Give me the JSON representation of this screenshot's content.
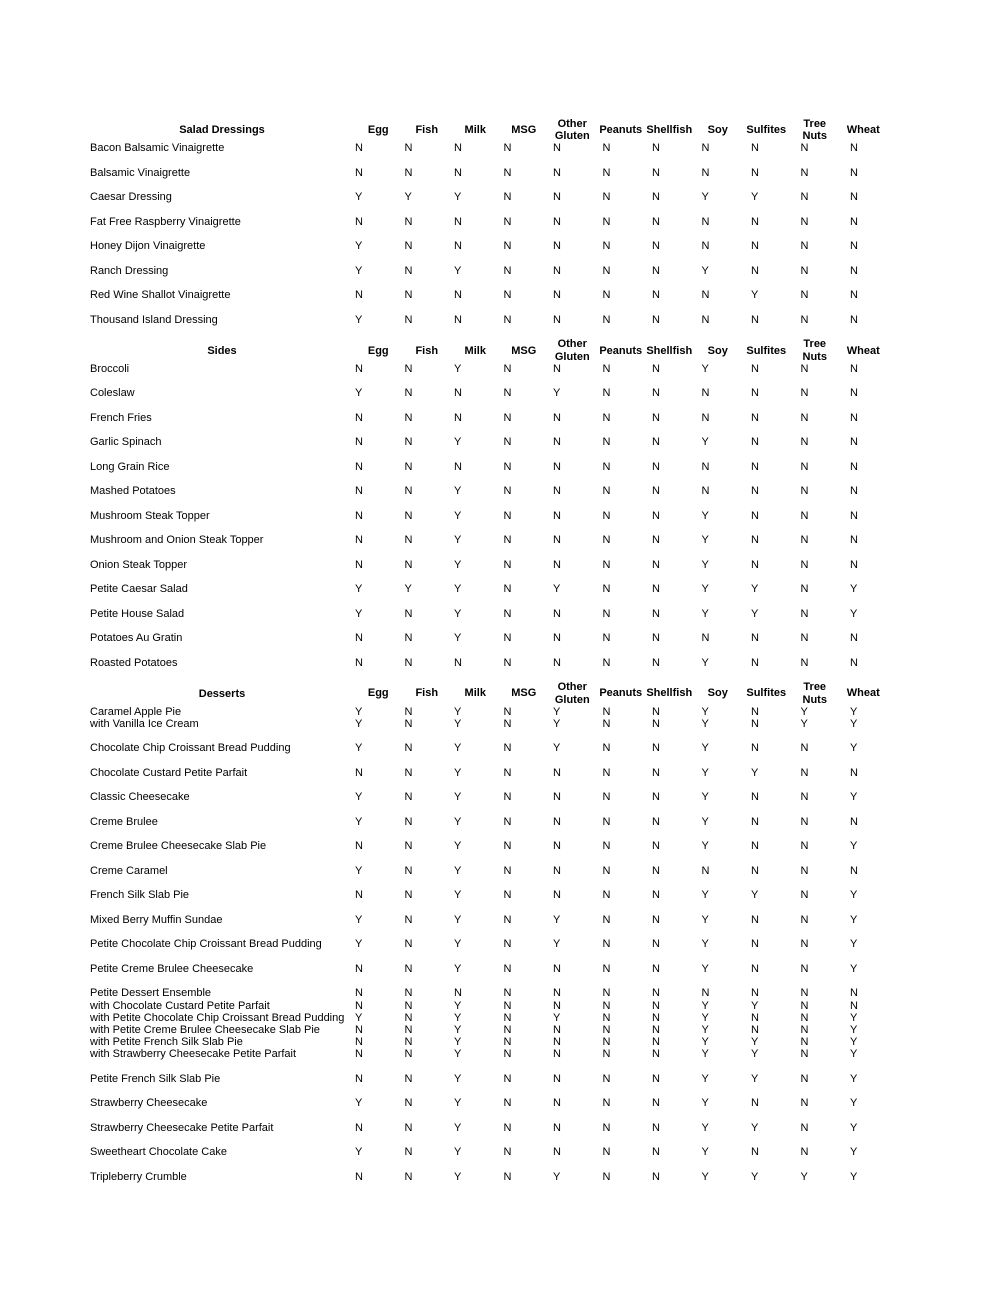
{
  "columns": [
    "Egg",
    "Fish",
    "Milk",
    "MSG",
    "Other\nGluten",
    "Peanuts",
    "Shellfish",
    "Soy",
    "Sulfites",
    "Tree Nuts",
    "Wheat"
  ],
  "sections": [
    {
      "title": "Salad Dressings",
      "groups": [
        {
          "lines": [
            {
              "label": "Bacon Balsamic Vinaigrette",
              "values": [
                "N",
                "N",
                "N",
                "N",
                "N",
                "N",
                "N",
                "N",
                "N",
                "N",
                "N"
              ]
            }
          ]
        },
        {
          "lines": [
            {
              "label": "Balsamic Vinaigrette",
              "values": [
                "N",
                "N",
                "N",
                "N",
                "N",
                "N",
                "N",
                "N",
                "N",
                "N",
                "N"
              ]
            }
          ]
        },
        {
          "lines": [
            {
              "label": "Caesar Dressing",
              "values": [
                "Y",
                "Y",
                "Y",
                "N",
                "N",
                "N",
                "N",
                "Y",
                "Y",
                "N",
                "N"
              ]
            }
          ]
        },
        {
          "lines": [
            {
              "label": "Fat Free Raspberry Vinaigrette",
              "values": [
                "N",
                "N",
                "N",
                "N",
                "N",
                "N",
                "N",
                "N",
                "N",
                "N",
                "N"
              ]
            }
          ]
        },
        {
          "lines": [
            {
              "label": "Honey Dijon Vinaigrette",
              "values": [
                "Y",
                "N",
                "N",
                "N",
                "N",
                "N",
                "N",
                "N",
                "N",
                "N",
                "N"
              ]
            }
          ]
        },
        {
          "lines": [
            {
              "label": "Ranch Dressing",
              "values": [
                "Y",
                "N",
                "Y",
                "N",
                "N",
                "N",
                "N",
                "Y",
                "N",
                "N",
                "N"
              ]
            }
          ]
        },
        {
          "lines": [
            {
              "label": "Red Wine Shallot Vinaigrette",
              "values": [
                "N",
                "N",
                "N",
                "N",
                "N",
                "N",
                "N",
                "N",
                "Y",
                "N",
                "N"
              ]
            }
          ]
        },
        {
          "lines": [
            {
              "label": "Thousand Island Dressing",
              "values": [
                "Y",
                "N",
                "N",
                "N",
                "N",
                "N",
                "N",
                "N",
                "N",
                "N",
                "N"
              ]
            }
          ]
        }
      ]
    },
    {
      "title": "Sides",
      "groups": [
        {
          "lines": [
            {
              "label": "Broccoli",
              "values": [
                "N",
                "N",
                "Y",
                "N",
                "N",
                "N",
                "N",
                "Y",
                "N",
                "N",
                "N"
              ]
            }
          ]
        },
        {
          "lines": [
            {
              "label": "Coleslaw",
              "values": [
                "Y",
                "N",
                "N",
                "N",
                "Y",
                "N",
                "N",
                "N",
                "N",
                "N",
                "N"
              ]
            }
          ]
        },
        {
          "lines": [
            {
              "label": "French Fries",
              "values": [
                "N",
                "N",
                "N",
                "N",
                "N",
                "N",
                "N",
                "N",
                "N",
                "N",
                "N"
              ]
            }
          ]
        },
        {
          "lines": [
            {
              "label": "Garlic Spinach",
              "values": [
                "N",
                "N",
                "Y",
                "N",
                "N",
                "N",
                "N",
                "Y",
                "N",
                "N",
                "N"
              ]
            }
          ]
        },
        {
          "lines": [
            {
              "label": "Long Grain Rice",
              "values": [
                "N",
                "N",
                "N",
                "N",
                "N",
                "N",
                "N",
                "N",
                "N",
                "N",
                "N"
              ]
            }
          ]
        },
        {
          "lines": [
            {
              "label": "Mashed Potatoes",
              "values": [
                "N",
                "N",
                "Y",
                "N",
                "N",
                "N",
                "N",
                "N",
                "N",
                "N",
                "N"
              ]
            }
          ]
        },
        {
          "lines": [
            {
              "label": "Mushroom Steak Topper",
              "values": [
                "N",
                "N",
                "Y",
                "N",
                "N",
                "N",
                "N",
                "Y",
                "N",
                "N",
                "N"
              ]
            }
          ]
        },
        {
          "lines": [
            {
              "label": "Mushroom and Onion Steak Topper",
              "values": [
                "N",
                "N",
                "Y",
                "N",
                "N",
                "N",
                "N",
                "Y",
                "N",
                "N",
                "N"
              ]
            }
          ]
        },
        {
          "lines": [
            {
              "label": "Onion Steak Topper",
              "values": [
                "N",
                "N",
                "Y",
                "N",
                "N",
                "N",
                "N",
                "Y",
                "N",
                "N",
                "N"
              ]
            }
          ]
        },
        {
          "lines": [
            {
              "label": "Petite Caesar Salad",
              "values": [
                "Y",
                "Y",
                "Y",
                "N",
                "Y",
                "N",
                "N",
                "Y",
                "Y",
                "N",
                "Y"
              ]
            }
          ]
        },
        {
          "lines": [
            {
              "label": "Petite House Salad",
              "values": [
                "Y",
                "N",
                "Y",
                "N",
                "N",
                "N",
                "N",
                "Y",
                "Y",
                "N",
                "Y"
              ]
            }
          ]
        },
        {
          "lines": [
            {
              "label": "Potatoes Au Gratin",
              "values": [
                "N",
                "N",
                "Y",
                "N",
                "N",
                "N",
                "N",
                "N",
                "N",
                "N",
                "N"
              ]
            }
          ]
        },
        {
          "lines": [
            {
              "label": "Roasted Potatoes",
              "values": [
                "N",
                "N",
                "N",
                "N",
                "N",
                "N",
                "N",
                "Y",
                "N",
                "N",
                "N"
              ]
            }
          ]
        }
      ]
    },
    {
      "title": "Desserts",
      "groups": [
        {
          "lines": [
            {
              "label": "Caramel Apple Pie",
              "values": [
                "Y",
                "N",
                "Y",
                "N",
                "Y",
                "N",
                "N",
                "Y",
                "N",
                "Y",
                "Y"
              ]
            },
            {
              "label": "with Vanilla Ice Cream",
              "values": [
                "Y",
                "N",
                "Y",
                "N",
                "Y",
                "N",
                "N",
                "Y",
                "N",
                "Y",
                "Y"
              ]
            }
          ]
        },
        {
          "lines": [
            {
              "label": "Chocolate Chip Croissant Bread Pudding",
              "values": [
                "Y",
                "N",
                "Y",
                "N",
                "Y",
                "N",
                "N",
                "Y",
                "N",
                "N",
                "Y"
              ]
            }
          ]
        },
        {
          "lines": [
            {
              "label": "Chocolate Custard Petite Parfait",
              "values": [
                "N",
                "N",
                "Y",
                "N",
                "N",
                "N",
                "N",
                "Y",
                "Y",
                "N",
                "N"
              ]
            }
          ]
        },
        {
          "lines": [
            {
              "label": "Classic Cheesecake",
              "values": [
                "Y",
                "N",
                "Y",
                "N",
                "N",
                "N",
                "N",
                "Y",
                "N",
                "N",
                "Y"
              ]
            }
          ]
        },
        {
          "lines": [
            {
              "label": "Creme Brulee",
              "values": [
                "Y",
                "N",
                "Y",
                "N",
                "N",
                "N",
                "N",
                "Y",
                "N",
                "N",
                "N"
              ]
            }
          ]
        },
        {
          "lines": [
            {
              "label": "Creme Brulee Cheesecake Slab Pie",
              "values": [
                "N",
                "N",
                "Y",
                "N",
                "N",
                "N",
                "N",
                "Y",
                "N",
                "N",
                "Y"
              ]
            }
          ]
        },
        {
          "lines": [
            {
              "label": "Creme Caramel",
              "values": [
                "Y",
                "N",
                "Y",
                "N",
                "N",
                "N",
                "N",
                "N",
                "N",
                "N",
                "N"
              ]
            }
          ]
        },
        {
          "lines": [
            {
              "label": "French Silk Slab Pie",
              "values": [
                "N",
                "N",
                "Y",
                "N",
                "N",
                "N",
                "N",
                "Y",
                "Y",
                "N",
                "Y"
              ]
            }
          ]
        },
        {
          "lines": [
            {
              "label": "Mixed Berry Muffin Sundae",
              "values": [
                "Y",
                "N",
                "Y",
                "N",
                "Y",
                "N",
                "N",
                "Y",
                "N",
                "N",
                "Y"
              ]
            }
          ]
        },
        {
          "lines": [
            {
              "label": "Petite Chocolate Chip Croissant Bread Pudding",
              "values": [
                "Y",
                "N",
                "Y",
                "N",
                "Y",
                "N",
                "N",
                "Y",
                "N",
                "N",
                "Y"
              ]
            }
          ]
        },
        {
          "lines": [
            {
              "label": "Petite Creme Brulee Cheesecake",
              "values": [
                "N",
                "N",
                "Y",
                "N",
                "N",
                "N",
                "N",
                "Y",
                "N",
                "N",
                "Y"
              ]
            }
          ]
        },
        {
          "lines": [
            {
              "label": "Petite Dessert Ensemble",
              "values": [
                "N",
                "N",
                "N",
                "N",
                "N",
                "N",
                "N",
                "N",
                "N",
                "N",
                "N"
              ]
            },
            {
              "label": "with Chocolate Custard Petite Parfait",
              "values": [
                "N",
                "N",
                "Y",
                "N",
                "N",
                "N",
                "N",
                "Y",
                "Y",
                "N",
                "N"
              ]
            },
            {
              "label": "with Petite Chocolate Chip Croissant Bread Pudding",
              "values": [
                "Y",
                "N",
                "Y",
                "N",
                "Y",
                "N",
                "N",
                "Y",
                "N",
                "N",
                "Y"
              ]
            },
            {
              "label": "with Petite Creme Brulee Cheesecake Slab Pie",
              "values": [
                "N",
                "N",
                "Y",
                "N",
                "N",
                "N",
                "N",
                "Y",
                "N",
                "N",
                "Y"
              ]
            },
            {
              "label": "with Petite French Silk Slab Pie",
              "values": [
                "N",
                "N",
                "Y",
                "N",
                "N",
                "N",
                "N",
                "Y",
                "Y",
                "N",
                "Y"
              ]
            },
            {
              "label": "with Strawberry Cheesecake Petite Parfait",
              "values": [
                "N",
                "N",
                "Y",
                "N",
                "N",
                "N",
                "N",
                "Y",
                "Y",
                "N",
                "Y"
              ]
            }
          ]
        },
        {
          "lines": [
            {
              "label": "Petite French Silk Slab Pie",
              "values": [
                "N",
                "N",
                "Y",
                "N",
                "N",
                "N",
                "N",
                "Y",
                "Y",
                "N",
                "Y"
              ]
            }
          ]
        },
        {
          "lines": [
            {
              "label": "Strawberry Cheesecake",
              "values": [
                "Y",
                "N",
                "Y",
                "N",
                "N",
                "N",
                "N",
                "Y",
                "N",
                "N",
                "Y"
              ]
            }
          ]
        },
        {
          "lines": [
            {
              "label": "Strawberry Cheesecake Petite Parfait",
              "values": [
                "N",
                "N",
                "Y",
                "N",
                "N",
                "N",
                "N",
                "Y",
                "Y",
                "N",
                "Y"
              ]
            }
          ]
        },
        {
          "lines": [
            {
              "label": "Sweetheart Chocolate Cake",
              "values": [
                "Y",
                "N",
                "Y",
                "N",
                "N",
                "N",
                "N",
                "Y",
                "N",
                "N",
                "Y"
              ]
            }
          ]
        },
        {
          "lines": [
            {
              "label": "Tripleberry Crumble",
              "values": [
                "N",
                "N",
                "Y",
                "N",
                "Y",
                "N",
                "N",
                "Y",
                "Y",
                "Y",
                "Y"
              ]
            }
          ]
        }
      ]
    }
  ]
}
